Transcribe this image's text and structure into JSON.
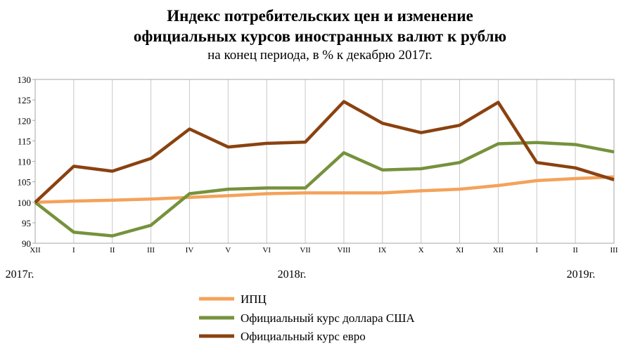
{
  "chart_data": {
    "type": "line",
    "title_line1": "Индекс потребительских цен и изменение",
    "title_line2": "официальных курсов иностранных валют к рублю",
    "subtitle": "на конец периода, в % к декабрю 2017г.",
    "ylim": [
      90,
      130
    ],
    "yticks": [
      90,
      95,
      100,
      105,
      110,
      115,
      120,
      125,
      130
    ],
    "grid": "vertical",
    "legend_position": "bottom",
    "categories": [
      "XII",
      "I",
      "II",
      "III",
      "IV",
      "V",
      "VI",
      "VII",
      "VIII",
      "IX",
      "X",
      "XI",
      "XII",
      "I",
      "II",
      "III"
    ],
    "years": [
      "2017г.",
      "2018г.",
      "2019г."
    ],
    "series": [
      {
        "name": "ИПЦ",
        "color": "#f4a25a",
        "values": [
          100,
          100.3,
          100.5,
          100.8,
          101.2,
          101.6,
          102.1,
          102.3,
          102.3,
          102.3,
          102.8,
          103.2,
          104.1,
          105.3,
          105.8,
          106.2
        ]
      },
      {
        "name": "Официальный курс доллара США",
        "color": "#76923c",
        "values": [
          100,
          92.7,
          91.8,
          94.4,
          102.1,
          103.2,
          103.5,
          103.5,
          112.1,
          107.9,
          108.2,
          109.7,
          114.3,
          114.6,
          114.1,
          112.3
        ]
      },
      {
        "name": "Официальный курс евро",
        "color": "#8a4210",
        "values": [
          100,
          108.8,
          107.6,
          110.7,
          117.9,
          113.5,
          114.4,
          114.7,
          124.6,
          119.3,
          117.0,
          118.8,
          124.4,
          109.7,
          108.4,
          105.5
        ]
      }
    ]
  }
}
